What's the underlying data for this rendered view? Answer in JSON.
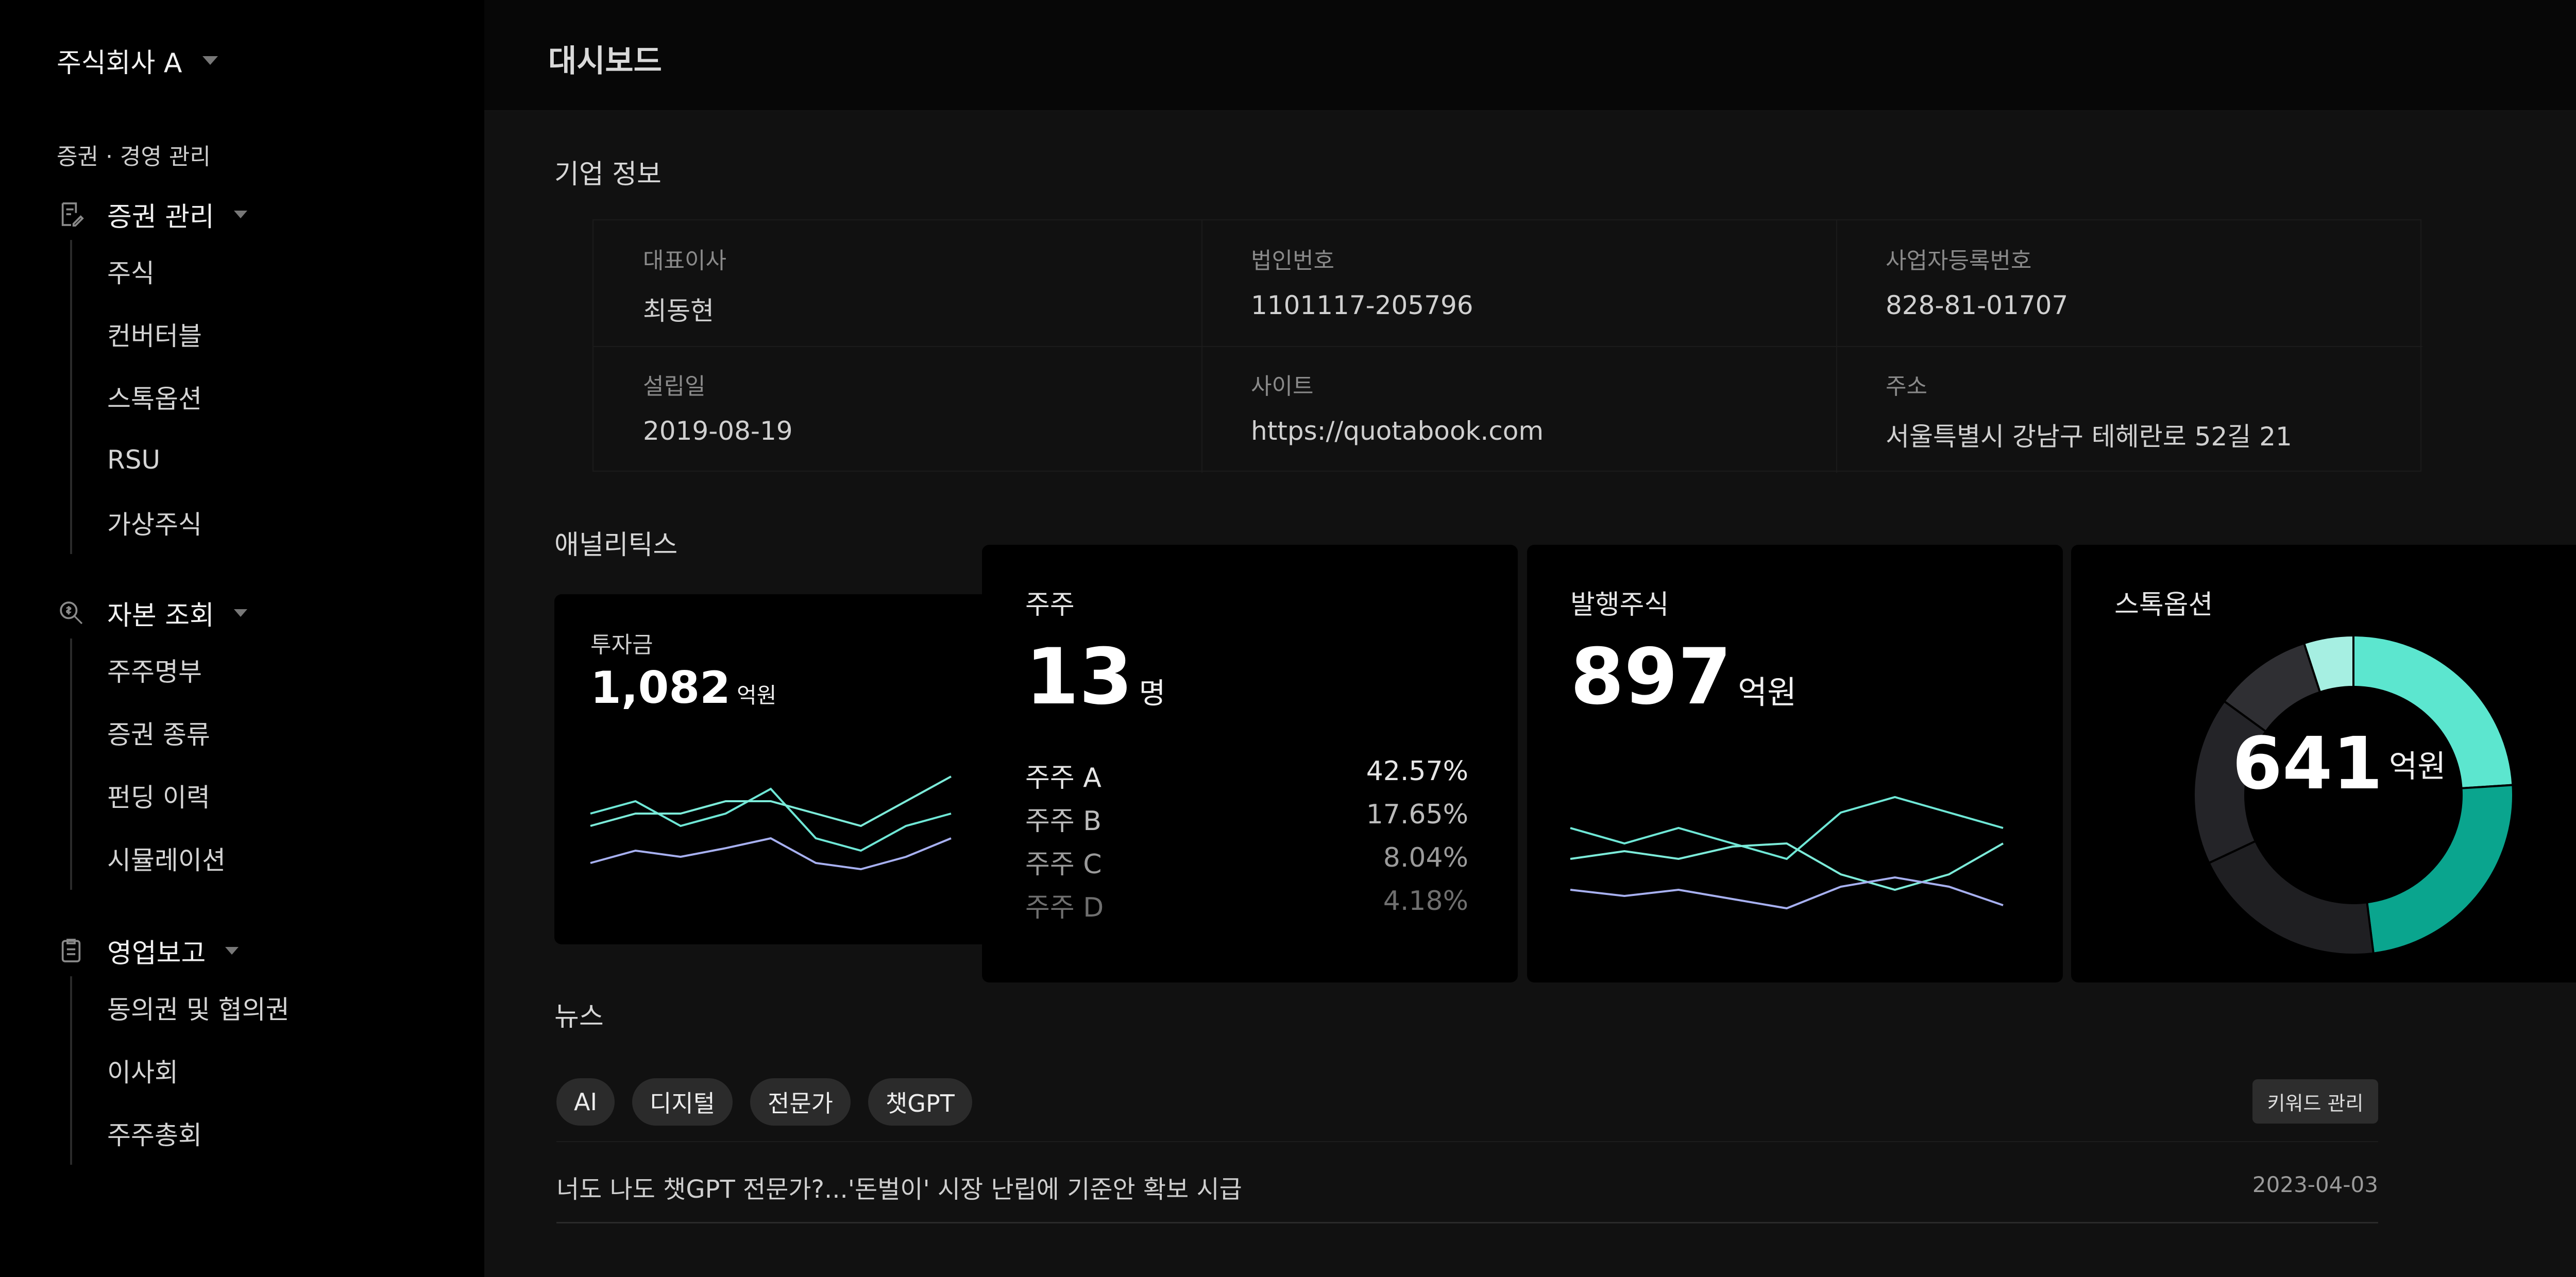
{
  "sidebar": {
    "company": "주식회사 A",
    "section_label": "증권 · 경영 관리",
    "groups": [
      {
        "label": "증권 관리",
        "items": [
          "주식",
          "컨버터블",
          "스톡옵션",
          "RSU",
          "가상주식"
        ]
      },
      {
        "label": "자본 조회",
        "items": [
          "주주명부",
          "증권 종류",
          "펀딩 이력",
          "시뮬레이션"
        ]
      },
      {
        "label": "영업보고",
        "items": [
          "동의권 및 협의권",
          "이사회",
          "주주총회"
        ]
      }
    ]
  },
  "header": {
    "title": "대시보드"
  },
  "company_info": {
    "title": "기업 정보",
    "fields": [
      {
        "label": "대표이사",
        "value": "최동현"
      },
      {
        "label": "법인번호",
        "value": "1101117-205796"
      },
      {
        "label": "사업자등록번호",
        "value": "828-81-01707"
      },
      {
        "label": "설립일",
        "value": "2019-08-19"
      },
      {
        "label": "사이트",
        "value": "https://quotabook.com"
      },
      {
        "label": "주소",
        "value": "서울특별시 강남구 테헤란로 52길 21"
      }
    ]
  },
  "analytics": {
    "title": "애널리틱스",
    "investment": {
      "title": "투자금",
      "value": "1,082",
      "unit": "억원"
    },
    "holders": {
      "title": "주주",
      "value": "13",
      "unit": "명",
      "rows": [
        {
          "name": "주주 A",
          "pct": "42.57%"
        },
        {
          "name": "주주 B",
          "pct": "17.65%"
        },
        {
          "name": "주주 C",
          "pct": "8.04%"
        },
        {
          "name": "주주 D",
          "pct": "4.18%"
        }
      ]
    },
    "issued": {
      "title": "발행주식",
      "value": "897",
      "unit": "억원"
    },
    "options": {
      "title": "스톡옵션",
      "value": "641",
      "unit": "억원"
    }
  },
  "chart_data": [
    {
      "type": "line",
      "series": [
        {
          "values": [
            4,
            3,
            5,
            4,
            2,
            6,
            7,
            5,
            4
          ],
          "color": "#6fe7d6"
        },
        {
          "values": [
            5,
            4,
            4,
            3,
            3,
            4,
            5,
            3,
            1
          ],
          "color": "#7cebd9"
        },
        {
          "values": [
            8,
            7,
            7.5,
            6.8,
            6,
            8,
            8.5,
            7.5,
            6
          ],
          "color": "#a7b0f0"
        }
      ]
    },
    {
      "type": "line",
      "series": [
        {
          "values": [
            4,
            5,
            4,
            5,
            6,
            3,
            2,
            3,
            4
          ],
          "color": "#6fe7d6"
        },
        {
          "values": [
            6,
            5.5,
            6,
            5.2,
            5,
            7,
            8,
            7,
            5
          ],
          "color": "#7cebd9"
        },
        {
          "values": [
            8,
            8.4,
            8,
            8.6,
            9.2,
            7.8,
            7.2,
            7.8,
            9
          ],
          "color": "#a7b0f0"
        }
      ]
    },
    {
      "type": "pie",
      "slices": [
        {
          "value": 24,
          "color": "#5ce6cf"
        },
        {
          "value": 24,
          "color": "#0aa58e"
        },
        {
          "value": 20,
          "color": "#1f1f22"
        },
        {
          "value": 17,
          "color": "#242428"
        },
        {
          "value": 10,
          "color": "#2f2f33"
        },
        {
          "value": 5,
          "color": "#a6efe2"
        }
      ]
    }
  ],
  "news": {
    "title": "뉴스",
    "keywords": [
      "AI",
      "디지털",
      "전문가",
      "챗GPT"
    ],
    "manage_label": "키워드 관리",
    "items": [
      {
        "title": "너도 나도 챗GPT 전문가?...'돈벌이' 시장 난립에 기준안 확보 시급",
        "date": "2023-04-03"
      }
    ]
  }
}
